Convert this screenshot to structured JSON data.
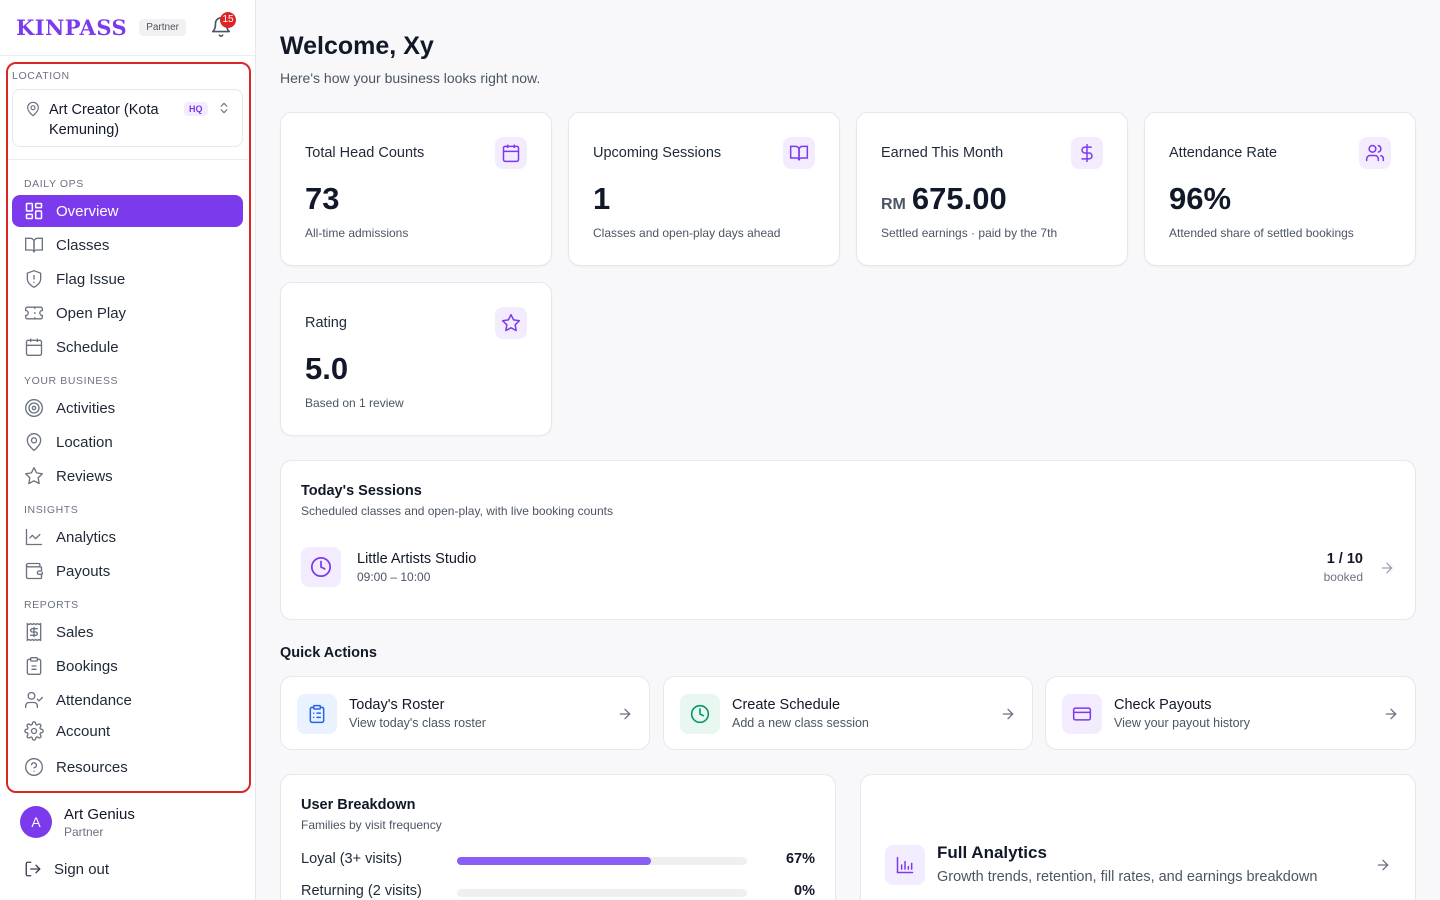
{
  "brand": {
    "logo": "KINPASS",
    "tag": "Partner",
    "notification_count": "15"
  },
  "sidebar": {
    "location_label": "LOCATION",
    "location_name": "Art Creator (Kota Kemuning)",
    "location_badge": "HQ",
    "sections": {
      "daily_ops": "DAILY OPS",
      "your_business": "YOUR BUSINESS",
      "insights": "INSIGHTS",
      "reports": "REPORTS"
    },
    "items": [
      {
        "label": "Overview",
        "icon": "grid-icon",
        "active": true
      },
      {
        "label": "Classes",
        "icon": "book-icon"
      },
      {
        "label": "Flag Issue",
        "icon": "shield-alert-icon"
      },
      {
        "label": "Open Play",
        "icon": "ticket-icon"
      },
      {
        "label": "Schedule",
        "icon": "calendar-icon"
      },
      {
        "label": "Activities",
        "icon": "target-icon"
      },
      {
        "label": "Location",
        "icon": "map-pin-icon"
      },
      {
        "label": "Reviews",
        "icon": "star-icon"
      },
      {
        "label": "Analytics",
        "icon": "line-chart-icon"
      },
      {
        "label": "Payouts",
        "icon": "wallet-icon"
      },
      {
        "label": "Sales",
        "icon": "receipt-icon"
      },
      {
        "label": "Bookings",
        "icon": "clipboard-icon"
      },
      {
        "label": "Attendance",
        "icon": "user-check-icon"
      },
      {
        "label": "Account",
        "icon": "gear-icon"
      },
      {
        "label": "Resources",
        "icon": "help-circle-icon"
      }
    ],
    "user": {
      "initial": "A",
      "name": "Art Genius",
      "role": "Partner"
    },
    "signout": "Sign out"
  },
  "header": {
    "title": "Welcome, Xy",
    "subtitle": "Here's how your business looks right now."
  },
  "stats": [
    {
      "title": "Total Head Counts",
      "value": "73",
      "currency": "",
      "note": "All-time admissions",
      "icon": "calendar-icon"
    },
    {
      "title": "Upcoming Sessions",
      "value": "1",
      "currency": "",
      "note": "Classes and open-play days ahead",
      "icon": "book-open-icon"
    },
    {
      "title": "Earned This Month",
      "value": "675.00",
      "currency": "RM",
      "note": "Settled earnings · paid by the 7th",
      "icon": "dollar-icon"
    },
    {
      "title": "Attendance Rate",
      "value": "96%",
      "currency": "",
      "note": "Attended share of settled bookings",
      "icon": "users-icon"
    },
    {
      "title": "Rating",
      "value": "5.0",
      "currency": "",
      "note": "Based on 1 review",
      "icon": "star-icon"
    }
  ],
  "todays_sessions": {
    "title": "Today's Sessions",
    "subtitle": "Scheduled classes and open-play, with live booking counts",
    "items": [
      {
        "name": "Little Artists Studio",
        "time": "09:00 – 10:00",
        "count": "1 / 10",
        "count_label": "booked"
      }
    ]
  },
  "quick_actions": {
    "title": "Quick Actions",
    "items": [
      {
        "name": "Today's Roster",
        "desc": "View today's class roster",
        "icon": "clipboard-list-icon",
        "color": "#2563eb",
        "bg": "#eaf1ff"
      },
      {
        "name": "Create Schedule",
        "desc": "Add a new class session",
        "icon": "clock-icon",
        "color": "#059669",
        "bg": "#e8f7f0"
      },
      {
        "name": "Check Payouts",
        "desc": "View your payout history",
        "icon": "credit-card-icon",
        "color": "#7c3aed",
        "bg": "#f3ecff"
      }
    ]
  },
  "user_breakdown": {
    "title": "User Breakdown",
    "subtitle": "Families by visit frequency",
    "rows": [
      {
        "label": "Loyal (3+ visits)",
        "pct": "67%",
        "fraction": 0.67
      },
      {
        "label": "Returning (2 visits)",
        "pct": "0%",
        "fraction": 0
      }
    ]
  },
  "full_analytics": {
    "title": "Full Analytics",
    "desc": "Growth trends, retention, fill rates, and earnings breakdown"
  },
  "colors": {
    "accent": "#7c3aed",
    "highlight_frame": "#dc2626"
  }
}
